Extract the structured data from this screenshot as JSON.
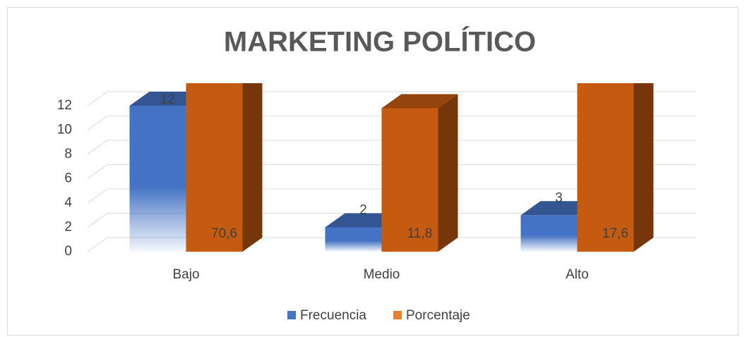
{
  "chart_data": {
    "type": "bar3d",
    "title": "MARKETING POLÍTICO",
    "categories": [
      "Bajo",
      "Medio",
      "Alto"
    ],
    "series": [
      {
        "name": "Frecuencia",
        "color": "#4472c4",
        "values": [
          12,
          2,
          3
        ]
      },
      {
        "name": "Porcentaje",
        "color": "#c55a11",
        "values": [
          70.6,
          11.8,
          17.6
        ],
        "value_labels": [
          "70,6",
          "11,8",
          "17,6"
        ]
      }
    ],
    "ylim": [
      0,
      12
    ],
    "yticks": [
      0,
      2,
      4,
      6,
      8,
      10,
      12
    ],
    "grid": true,
    "legend": "bottom"
  }
}
